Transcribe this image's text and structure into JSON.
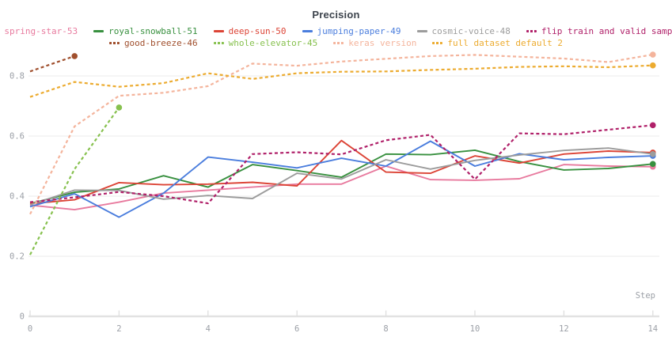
{
  "chart_data": {
    "type": "line",
    "title": "Precision",
    "xlabel": "Step",
    "x_ticks": [
      0,
      2,
      4,
      6,
      8,
      10,
      12,
      14
    ],
    "y_ticks": [
      0,
      0.2,
      0.4,
      0.6,
      0.8
    ],
    "xlim": [
      0,
      14
    ],
    "ylim": [
      0,
      0.95
    ],
    "grid": "horizontal-only",
    "legend_position": "top",
    "series": [
      {
        "name": "spring-star-53",
        "color": "#e87a9e",
        "line_style": "solid",
        "legend_row": 1,
        "values": [
          0.37,
          0.355,
          0.38,
          0.41,
          0.42,
          0.43,
          0.44,
          0.44,
          0.5,
          0.455,
          0.453,
          0.458,
          0.505,
          0.5,
          0.498
        ]
      },
      {
        "name": "royal-snowball-51",
        "color": "#38903f",
        "line_style": "solid",
        "legend_row": 1,
        "values": [
          0.375,
          0.413,
          0.424,
          0.468,
          0.43,
          0.505,
          0.485,
          0.463,
          0.54,
          0.538,
          0.553,
          0.515,
          0.487,
          0.492,
          0.507
        ]
      },
      {
        "name": "deep-sun-50",
        "color": "#dc4436",
        "line_style": "solid",
        "legend_row": 1,
        "values": [
          0.375,
          0.388,
          0.445,
          0.438,
          0.44,
          0.446,
          0.434,
          0.585,
          0.48,
          0.476,
          0.534,
          0.51,
          0.54,
          0.55,
          0.545
        ]
      },
      {
        "name": "jumping-paper-49",
        "color": "#4a7ddd",
        "line_style": "solid",
        "legend_row": 1,
        "values": [
          0.365,
          0.408,
          0.33,
          0.41,
          0.53,
          0.513,
          0.494,
          0.526,
          0.5,
          0.583,
          0.5,
          0.541,
          0.521,
          0.529,
          0.534
        ]
      },
      {
        "name": "cosmic-voice-48",
        "color": "#9c9c9c",
        "line_style": "solid",
        "legend_row": 1,
        "values": [
          0.371,
          0.42,
          0.419,
          0.39,
          0.402,
          0.392,
          0.476,
          0.457,
          0.521,
          0.49,
          0.519,
          0.537,
          0.552,
          0.56,
          0.54
        ]
      },
      {
        "name": "flip train and valid sample",
        "color": "#b02069",
        "line_style": "dashed",
        "legend_row": 1,
        "values": [
          0.38,
          0.396,
          0.414,
          0.4,
          0.376,
          0.54,
          0.546,
          0.539,
          0.586,
          0.604,
          0.456,
          0.609,
          0.606,
          0.621,
          0.636
        ]
      },
      {
        "name": "good-breeze-46",
        "color": "#a04f2d",
        "line_style": "dashed",
        "legend_row": 2,
        "steps": [
          0,
          1
        ],
        "values": [
          0.815,
          0.866
        ]
      },
      {
        "name": "whole-elevator-45",
        "color": "#87c14f",
        "line_style": "dashed",
        "legend_row": 2,
        "steps": [
          0,
          1,
          2
        ],
        "values": [
          0.205,
          0.49,
          0.695
        ]
      },
      {
        "name": "keras version",
        "color": "#f4b49c",
        "line_style": "dashed",
        "legend_row": 2,
        "values": [
          0.34,
          0.632,
          0.734,
          0.744,
          0.766,
          0.841,
          0.834,
          0.848,
          0.857,
          0.866,
          0.87,
          0.864,
          0.858,
          0.846,
          0.871
        ]
      },
      {
        "name": "full dataset default 2",
        "color": "#ecab2f",
        "line_style": "dashed",
        "legend_row": 2,
        "values": [
          0.73,
          0.78,
          0.764,
          0.776,
          0.809,
          0.79,
          0.809,
          0.814,
          0.815,
          0.82,
          0.824,
          0.83,
          0.832,
          0.829,
          0.835
        ]
      }
    ]
  }
}
